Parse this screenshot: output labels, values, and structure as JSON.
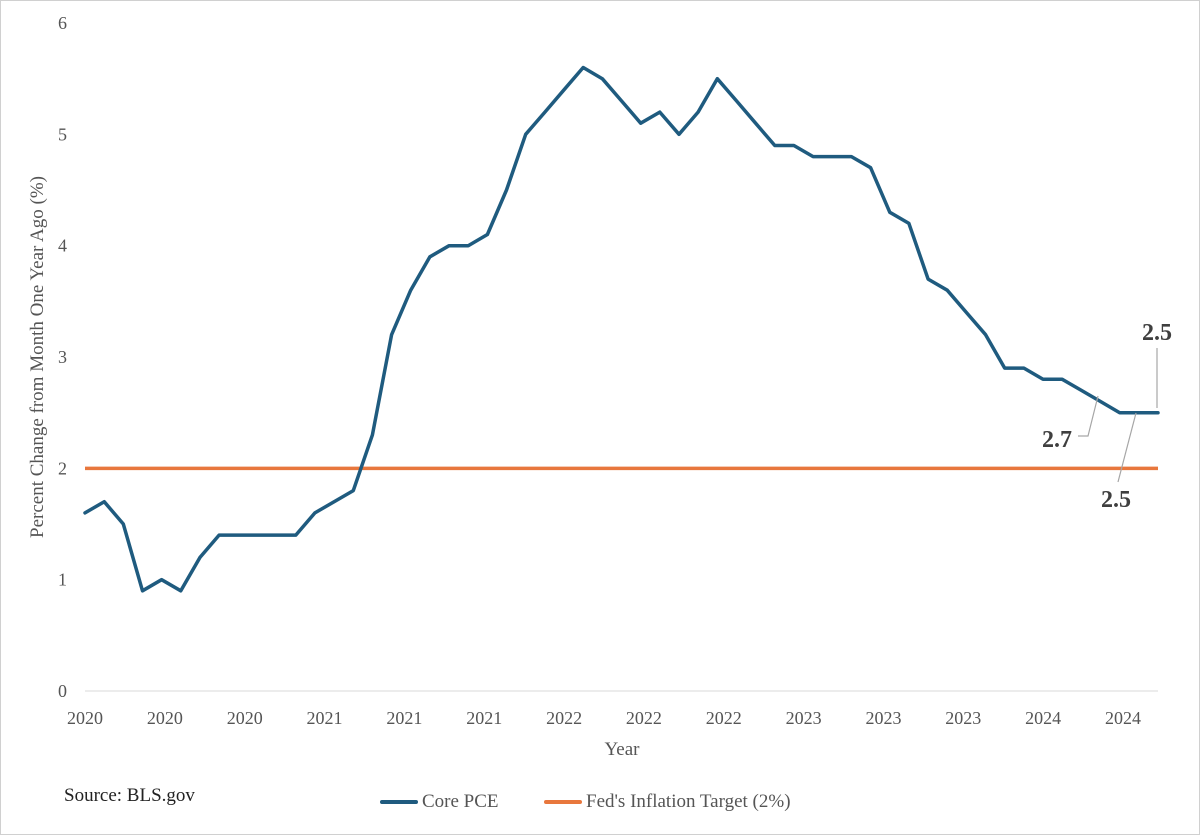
{
  "chart_data": {
    "type": "line",
    "xlabel": "Year",
    "ylabel": "Percent Change from Month One Year Ago (%)",
    "ylim": [
      0,
      6
    ],
    "yticks": [
      0,
      1,
      2,
      3,
      4,
      5,
      6
    ],
    "grid": false,
    "legend_position": "bottom",
    "x_tick_labels": [
      "2020",
      "2020",
      "2020",
      "2021",
      "2021",
      "2021",
      "2022",
      "2022",
      "2022",
      "2023",
      "2023",
      "2023",
      "2024",
      "2024"
    ],
    "series": [
      {
        "name": "Core PCE",
        "color": "#1f5b7f",
        "values": [
          1.6,
          1.7,
          1.5,
          0.9,
          1.0,
          0.9,
          1.2,
          1.4,
          1.4,
          1.4,
          1.4,
          1.4,
          1.6,
          1.7,
          1.8,
          2.3,
          3.2,
          3.6,
          3.9,
          4.0,
          4.0,
          4.1,
          4.5,
          5.0,
          5.2,
          5.4,
          5.6,
          5.5,
          5.3,
          5.1,
          5.2,
          5.0,
          5.2,
          5.5,
          5.3,
          5.1,
          4.9,
          4.9,
          4.8,
          4.8,
          4.8,
          4.7,
          4.3,
          4.2,
          3.7,
          3.6,
          3.4,
          3.2,
          2.9,
          2.9,
          2.8,
          2.8,
          2.7,
          2.6,
          2.5,
          2.5,
          2.5
        ]
      },
      {
        "name": "Fed's Inflation Target (2%)",
        "color": "#e8773d",
        "values": [
          2,
          2
        ]
      }
    ],
    "annotations": [
      {
        "text": "2.5",
        "index": 56
      },
      {
        "text": "2.7",
        "index": 52
      },
      {
        "text": "2.5",
        "index": 54
      }
    ]
  },
  "source": "Source: BLS.gov"
}
